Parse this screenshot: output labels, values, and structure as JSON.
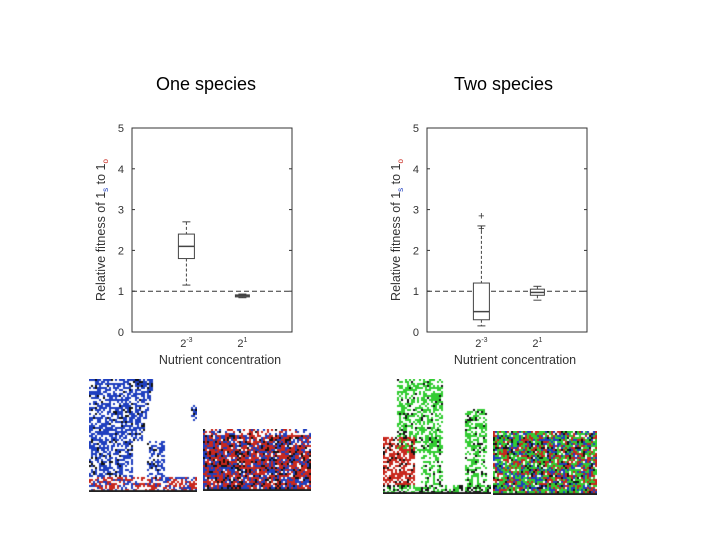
{
  "headings": {
    "left": "One species",
    "right": "Two species"
  },
  "colors": {
    "blue": "#1f3fbf",
    "red": "#c8281e",
    "green": "#33cc33",
    "black": "#111111"
  },
  "chart_data": [
    {
      "type": "box",
      "title": "One species",
      "xlabel": "Nutrient concentration",
      "ylabel": {
        "prefix": "Relative fitness of 1",
        "sub1": "s",
        "mid": " to 1",
        "sub2": "o"
      },
      "ylim": [
        0,
        5
      ],
      "yticks": [
        "0",
        "1",
        "2",
        "3",
        "4",
        "5"
      ],
      "reference_line": 1,
      "categories": [
        {
          "base": "2",
          "exp": "-3"
        },
        {
          "base": "2",
          "exp": "1"
        }
      ],
      "boxes": [
        {
          "q1": 1.8,
          "median": 2.1,
          "q3": 2.4,
          "whisker_low": 1.15,
          "whisker_high": 2.7,
          "outliers": []
        },
        {
          "q1": 0.86,
          "median": 0.89,
          "q3": 0.91,
          "whisker_low": 0.84,
          "whisker_high": 0.93,
          "outliers": []
        }
      ]
    },
    {
      "type": "box",
      "title": "Two species",
      "xlabel": "Nutrient concentration",
      "ylabel": {
        "prefix": "Relative fitness of 1",
        "sub1": "s",
        "mid": " to 1",
        "sub2": "o"
      },
      "ylim": [
        0,
        5
      ],
      "yticks": [
        "0",
        "1",
        "2",
        "3",
        "4",
        "5"
      ],
      "reference_line": 1,
      "categories": [
        {
          "base": "2",
          "exp": "-3"
        },
        {
          "base": "2",
          "exp": "1"
        }
      ],
      "boxes": [
        {
          "q1": 0.3,
          "median": 0.5,
          "q3": 1.2,
          "whisker_low": 0.15,
          "whisker_high": 2.6,
          "outliers": [
            2.85,
            2.55
          ]
        },
        {
          "q1": 0.9,
          "median": 0.97,
          "q3": 1.05,
          "whisker_low": 0.78,
          "whisker_high": 1.12,
          "outliers": []
        }
      ]
    }
  ]
}
